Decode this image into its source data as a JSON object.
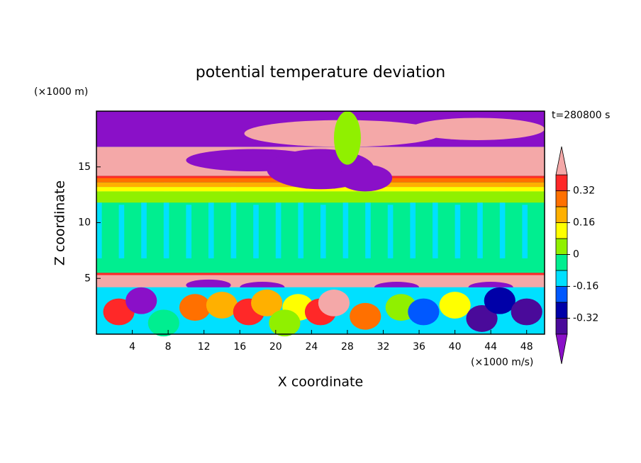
{
  "chart_data": {
    "type": "contour",
    "title": "potential temperature deviation",
    "xlabel": "X coordinate",
    "ylabel": "Z coordinate",
    "xunit": "(×1000 m/s)",
    "yunit": "(×1000 m)",
    "time_label": "t=280800 s",
    "xlim": [
      0,
      50
    ],
    "xticks": [
      4,
      8,
      12,
      16,
      20,
      24,
      28,
      32,
      36,
      40,
      44,
      48
    ],
    "ylim": [
      0,
      20
    ],
    "yticks": [
      5,
      10,
      15
    ],
    "colorbar": {
      "levels": [
        -0.4,
        -0.32,
        -0.24,
        -0.16,
        -0.08,
        0,
        0.08,
        0.16,
        0.24,
        0.32,
        0.4
      ],
      "colors": [
        "#8a10c8",
        "#4a0a9a",
        "#0000a8",
        "#0058ff",
        "#00e0ff",
        "#00ee90",
        "#90f000",
        "#ffff00",
        "#ffb000",
        "#ff7000",
        "#ff2828",
        "#f4a8a8"
      ],
      "ticks": [
        -0.32,
        -0.16,
        0,
        0.16,
        0.32
      ]
    }
  }
}
